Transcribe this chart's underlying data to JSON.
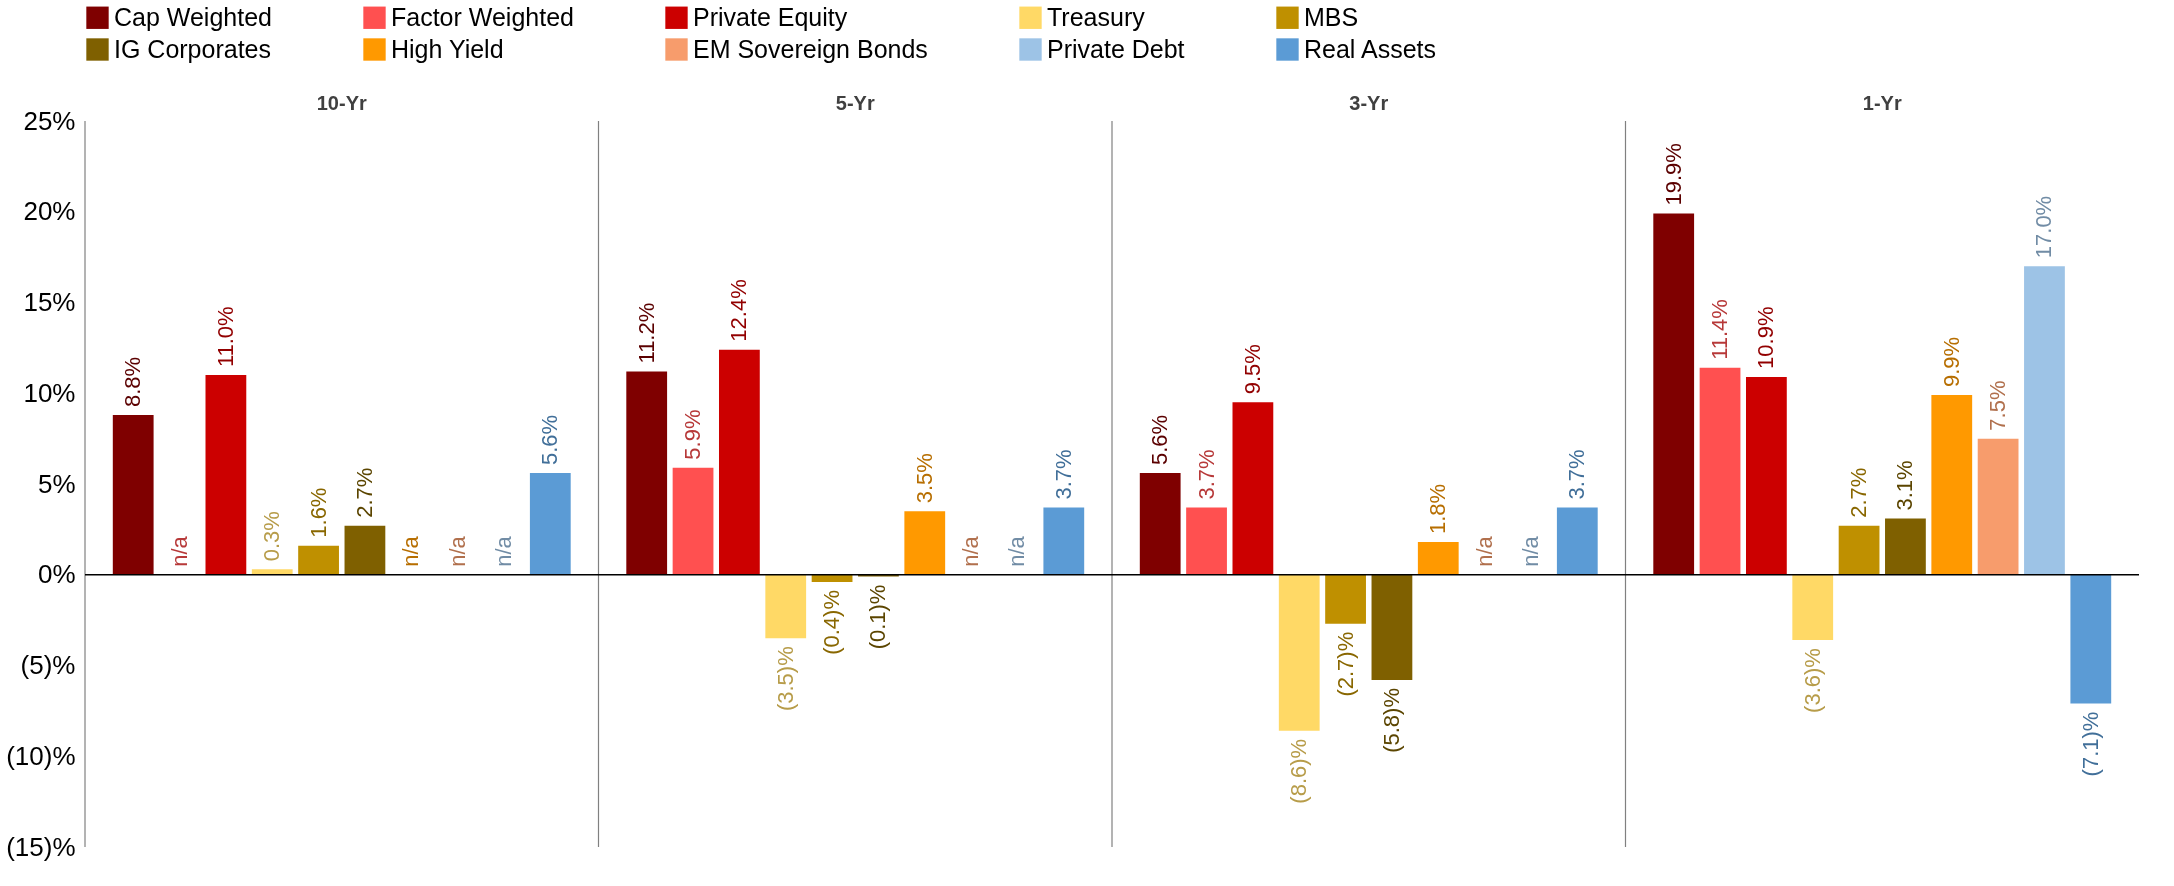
{
  "chart_data": {
    "type": "bar",
    "categories": [
      "10-Yr",
      "5-Yr",
      "3-Yr",
      "1-Yr"
    ],
    "series": [
      {
        "name": "Cap Weighted",
        "color": "#7f0000",
        "values": [
          8.8,
          11.2,
          5.6,
          19.9
        ],
        "value_labels": [
          "8.8%",
          "11.2%",
          "5.6%",
          "19.9%"
        ]
      },
      {
        "name": "Factor Weighted",
        "color": "#ff5050",
        "values": [
          null,
          5.9,
          3.7,
          11.4
        ],
        "value_labels": [
          "n/a",
          "5.9%",
          "3.7%",
          "11.4%"
        ]
      },
      {
        "name": "Private Equity",
        "color": "#cc0000",
        "values": [
          11.0,
          12.4,
          9.5,
          10.9
        ],
        "value_labels": [
          "11.0%",
          "12.4%",
          "9.5%",
          "10.9%"
        ]
      },
      {
        "name": "Treasury",
        "color": "#ffd966",
        "values": [
          0.3,
          -3.5,
          -8.6,
          -3.6
        ],
        "value_labels": [
          "0.3%",
          "(3.5)%",
          "(8.6)%",
          "(3.6)%"
        ]
      },
      {
        "name": "MBS",
        "color": "#bf9000",
        "values": [
          1.6,
          -0.4,
          -2.7,
          2.7
        ],
        "value_labels": [
          "1.6%",
          "(0.4)%",
          "(2.7)%",
          "2.7%"
        ]
      },
      {
        "name": "IG Corporates",
        "color": "#7f6000",
        "values": [
          2.7,
          -0.1,
          -5.8,
          3.1
        ],
        "value_labels": [
          "2.7%",
          "(0.1)%",
          "(5.8)%",
          "3.1%"
        ]
      },
      {
        "name": "High Yield",
        "color": "#ff9900",
        "values": [
          null,
          3.5,
          1.8,
          9.9
        ],
        "value_labels": [
          "n/a",
          "3.5%",
          "1.8%",
          "9.9%"
        ]
      },
      {
        "name": "EM Sovereign Bonds",
        "color": "#f79c6c",
        "values": [
          null,
          null,
          null,
          7.5
        ],
        "value_labels": [
          "n/a",
          "n/a",
          "n/a",
          "7.5%"
        ]
      },
      {
        "name": "Private Debt",
        "color": "#9dc3e6",
        "values": [
          null,
          null,
          null,
          17.0
        ],
        "value_labels": [
          "n/a",
          "n/a",
          "n/a",
          "17.0%"
        ]
      },
      {
        "name": "Real Assets",
        "color": "#5b9bd5",
        "values": [
          5.6,
          3.7,
          3.7,
          -7.1
        ],
        "value_labels": [
          "5.6%",
          "3.7%",
          "3.7%",
          "(7.1)%"
        ]
      }
    ],
    "ylim": [
      -15,
      25
    ],
    "yticks": [
      {
        "value": -15,
        "label": "(15)%"
      },
      {
        "value": -10,
        "label": "(10)%"
      },
      {
        "value": -5,
        "label": "(5)%"
      },
      {
        "value": 0,
        "label": "0%"
      },
      {
        "value": 5,
        "label": "5%"
      },
      {
        "value": 10,
        "label": "10%"
      },
      {
        "value": 15,
        "label": "15%"
      },
      {
        "value": 20,
        "label": "20%"
      },
      {
        "value": 25,
        "label": "25%"
      }
    ],
    "ref_lines": [
      {
        "axis": "y",
        "value": 0,
        "color": "#000000"
      }
    ],
    "grid": "x",
    "legend": "top"
  }
}
